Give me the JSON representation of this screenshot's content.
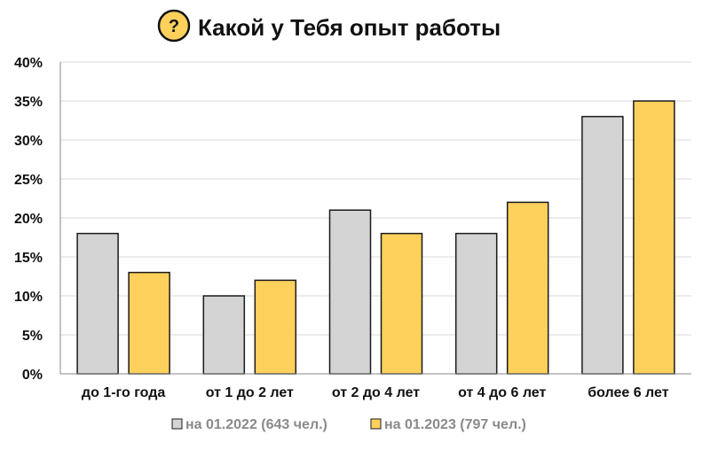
{
  "title": "Какой у Тебя опыт работы",
  "title_icon": "question-icon",
  "colors": {
    "accent": "#FDD15C",
    "series_2022": "#D4D4D4",
    "series_2023": "#FDD15C",
    "bar_outline": "#1a1a1a",
    "grid": "#d9d9d9",
    "legend_text": "#8a8a8a"
  },
  "chart_data": {
    "type": "bar",
    "title": "Какой у Тебя опыт работы",
    "categories": [
      "до 1-го года",
      "от 1 до 2 лет",
      "от 2 до 4 лет",
      "от 4 до 6 лет",
      "более 6 лет"
    ],
    "series": [
      {
        "name": "на 01.2022 (643 чел.)",
        "values": [
          18,
          10,
          21,
          18,
          33
        ]
      },
      {
        "name": "на 01.2023 (797 чел.)",
        "values": [
          13,
          12,
          18,
          22,
          35
        ]
      }
    ],
    "y_ticks": [
      "0%",
      "5%",
      "10%",
      "15%",
      "20%",
      "25%",
      "30%",
      "35%",
      "40%"
    ],
    "ylim": [
      0,
      40
    ],
    "unit": "%",
    "grid": true,
    "legend_position": "bottom"
  }
}
